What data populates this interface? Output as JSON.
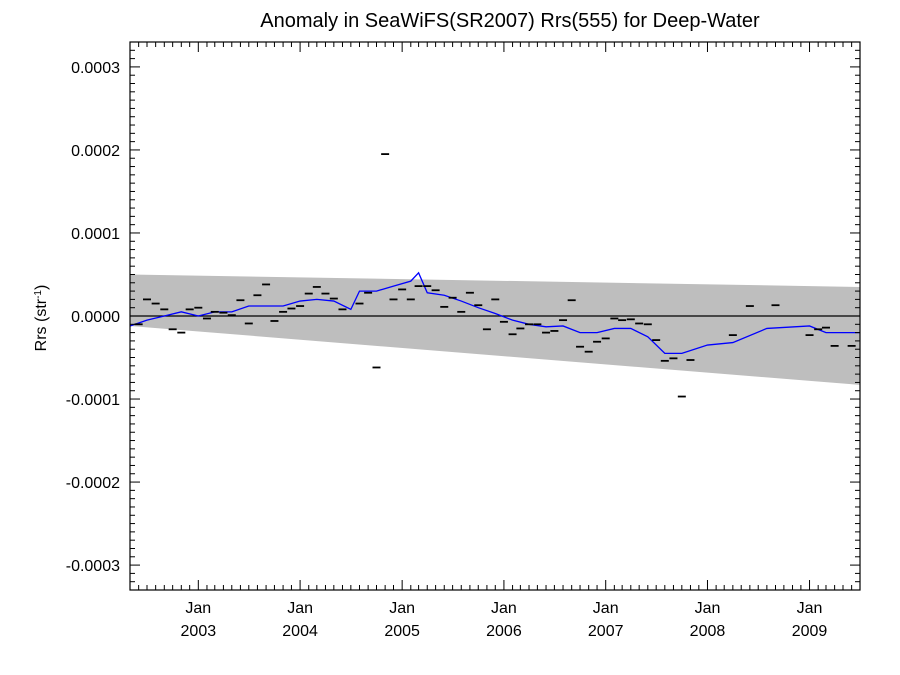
{
  "chart_data": {
    "type": "scatter",
    "title": "Anomaly in SeaWiFS(SR2007) Rrs(555) for Deep-Water",
    "ylabel_main": "Rrs (str",
    "ylabel_sup": "-1",
    "ylabel_close": ")",
    "xlabel": "",
    "x_range": [
      "2002-05-01",
      "2009-07-01"
    ],
    "y_range": [
      -0.00033,
      0.00033
    ],
    "y_ticks": [
      {
        "value": 0.0003,
        "label": "0.0003"
      },
      {
        "value": 0.0002,
        "label": "0.0002"
      },
      {
        "value": 0.0001,
        "label": "0.0001"
      },
      {
        "value": 0.0,
        "label": "0.0000"
      },
      {
        "value": -0.0001,
        "label": "-0.0001"
      },
      {
        "value": -0.0002,
        "label": "-0.0002"
      },
      {
        "value": -0.0003,
        "label": "-0.0003"
      }
    ],
    "x_ticks": [
      {
        "date": "2003-01-01",
        "month": "Jan",
        "year": "2003"
      },
      {
        "date": "2004-01-01",
        "month": "Jan",
        "year": "2004"
      },
      {
        "date": "2005-01-01",
        "month": "Jan",
        "year": "2005"
      },
      {
        "date": "2006-01-01",
        "month": "Jan",
        "year": "2006"
      },
      {
        "date": "2007-01-01",
        "month": "Jan",
        "year": "2007"
      },
      {
        "date": "2008-01-01",
        "month": "Jan",
        "year": "2008"
      },
      {
        "date": "2009-01-01",
        "month": "Jan",
        "year": "2009"
      }
    ],
    "zero_line": 0.0,
    "band": {
      "color": "#bebebe",
      "upper": [
        [
          "2002-05-01",
          5e-05
        ],
        [
          "2009-07-01",
          3.5e-05
        ]
      ],
      "lower": [
        [
          "2002-05-01",
          -1.2e-05
        ],
        [
          "2009-07-01",
          -8.3e-05
        ]
      ]
    },
    "points": {
      "color": "#000000",
      "marker": "dash",
      "data": [
        [
          "2002-06-01",
          -1e-05
        ],
        [
          "2002-07-01",
          2e-05
        ],
        [
          "2002-08-01",
          1.5e-05
        ],
        [
          "2002-09-01",
          8e-06
        ],
        [
          "2002-10-01",
          -1.6e-05
        ],
        [
          "2002-11-01",
          -2e-05
        ],
        [
          "2002-12-01",
          8e-06
        ],
        [
          "2003-01-01",
          1e-05
        ],
        [
          "2003-02-01",
          -3e-06
        ],
        [
          "2003-03-01",
          5e-06
        ],
        [
          "2003-04-01",
          4e-06
        ],
        [
          "2003-05-01",
          1e-06
        ],
        [
          "2003-06-01",
          1.9e-05
        ],
        [
          "2003-07-01",
          -9e-06
        ],
        [
          "2003-08-01",
          2.5e-05
        ],
        [
          "2003-09-01",
          3.8e-05
        ],
        [
          "2003-10-01",
          -6e-06
        ],
        [
          "2003-11-01",
          5e-06
        ],
        [
          "2003-12-01",
          9e-06
        ],
        [
          "2004-01-01",
          1.2e-05
        ],
        [
          "2004-02-01",
          2.7e-05
        ],
        [
          "2004-03-01",
          3.5e-05
        ],
        [
          "2004-04-01",
          2.7e-05
        ],
        [
          "2004-05-01",
          2.1e-05
        ],
        [
          "2004-06-01",
          8e-06
        ],
        [
          "2004-08-01",
          1.5e-05
        ],
        [
          "2004-09-01",
          2.8e-05
        ],
        [
          "2004-10-01",
          -6.2e-05
        ],
        [
          "2004-11-01",
          0.000195
        ],
        [
          "2004-12-01",
          2e-05
        ],
        [
          "2005-01-01",
          3.2e-05
        ],
        [
          "2005-02-01",
          2e-05
        ],
        [
          "2005-03-01",
          3.6e-05
        ],
        [
          "2005-04-01",
          3.6e-05
        ],
        [
          "2005-05-01",
          3.1e-05
        ],
        [
          "2005-06-01",
          1.1e-05
        ],
        [
          "2005-07-01",
          2.2e-05
        ],
        [
          "2005-08-01",
          5e-06
        ],
        [
          "2005-09-01",
          2.8e-05
        ],
        [
          "2005-10-01",
          1.3e-05
        ],
        [
          "2005-11-01",
          -1.6e-05
        ],
        [
          "2005-12-01",
          2e-05
        ],
        [
          "2006-01-01",
          -7e-06
        ],
        [
          "2006-02-01",
          -2.2e-05
        ],
        [
          "2006-03-01",
          -1.5e-05
        ],
        [
          "2006-04-01",
          -1e-05
        ],
        [
          "2006-05-01",
          -1e-05
        ],
        [
          "2006-06-01",
          -2e-05
        ],
        [
          "2006-07-01",
          -1.8e-05
        ],
        [
          "2006-08-01",
          -5e-06
        ],
        [
          "2006-09-01",
          1.9e-05
        ],
        [
          "2006-10-01",
          -3.7e-05
        ],
        [
          "2006-11-01",
          -4.3e-05
        ],
        [
          "2006-12-01",
          -3.1e-05
        ],
        [
          "2007-01-01",
          -2.7e-05
        ],
        [
          "2007-02-01",
          -3e-06
        ],
        [
          "2007-03-01",
          -5e-06
        ],
        [
          "2007-04-01",
          -4e-06
        ],
        [
          "2007-05-01",
          -9e-06
        ],
        [
          "2007-06-01",
          -1e-05
        ],
        [
          "2007-07-01",
          -2.9e-05
        ],
        [
          "2007-08-01",
          -5.4e-05
        ],
        [
          "2007-09-01",
          -5.1e-05
        ],
        [
          "2007-10-01",
          -9.7e-05
        ],
        [
          "2007-11-01",
          -5.3e-05
        ],
        [
          "2008-04-01",
          -2.3e-05
        ],
        [
          "2008-06-01",
          1.2e-05
        ],
        [
          "2008-09-01",
          1.3e-05
        ],
        [
          "2009-01-01",
          -2.3e-05
        ],
        [
          "2009-02-01",
          -1.6e-05
        ],
        [
          "2009-03-01",
          -1.4e-05
        ],
        [
          "2009-04-01",
          -3.6e-05
        ],
        [
          "2009-06-01",
          -3.6e-05
        ]
      ]
    },
    "trend_line": {
      "color": "#0000ff",
      "data": [
        [
          "2002-05-01",
          -1.2e-05
        ],
        [
          "2002-07-01",
          -5e-06
        ],
        [
          "2002-09-01",
          0.0
        ],
        [
          "2002-11-01",
          5e-06
        ],
        [
          "2003-01-01",
          0.0
        ],
        [
          "2003-03-01",
          5e-06
        ],
        [
          "2003-05-01",
          5e-06
        ],
        [
          "2003-07-01",
          1.2e-05
        ],
        [
          "2003-09-01",
          1.2e-05
        ],
        [
          "2003-11-01",
          1.2e-05
        ],
        [
          "2004-01-01",
          1.8e-05
        ],
        [
          "2004-03-01",
          2e-05
        ],
        [
          "2004-05-01",
          1.8e-05
        ],
        [
          "2004-07-01",
          8e-06
        ],
        [
          "2004-08-01",
          3e-05
        ],
        [
          "2004-10-01",
          3e-05
        ],
        [
          "2004-12-01",
          3.6e-05
        ],
        [
          "2005-02-01",
          4.2e-05
        ],
        [
          "2005-03-01",
          5.2e-05
        ],
        [
          "2005-04-01",
          2.8e-05
        ],
        [
          "2005-06-01",
          2.5e-05
        ],
        [
          "2005-08-01",
          1.8e-05
        ],
        [
          "2005-10-01",
          1e-05
        ],
        [
          "2005-12-01",
          3e-06
        ],
        [
          "2006-02-01",
          -5e-06
        ],
        [
          "2006-04-01",
          -1e-05
        ],
        [
          "2006-06-01",
          -1.3e-05
        ],
        [
          "2006-08-01",
          -1.2e-05
        ],
        [
          "2006-10-01",
          -2e-05
        ],
        [
          "2006-12-01",
          -2e-05
        ],
        [
          "2007-02-01",
          -1.5e-05
        ],
        [
          "2007-04-01",
          -1.5e-05
        ],
        [
          "2007-06-01",
          -2.5e-05
        ],
        [
          "2007-08-01",
          -4.5e-05
        ],
        [
          "2007-10-01",
          -4.5e-05
        ],
        [
          "2008-01-01",
          -3.5e-05
        ],
        [
          "2008-04-01",
          -3.2e-05
        ],
        [
          "2008-08-01",
          -1.5e-05
        ],
        [
          "2009-01-01",
          -1.2e-05
        ],
        [
          "2009-03-01",
          -2e-05
        ],
        [
          "2009-07-01",
          -2e-05
        ]
      ]
    }
  }
}
